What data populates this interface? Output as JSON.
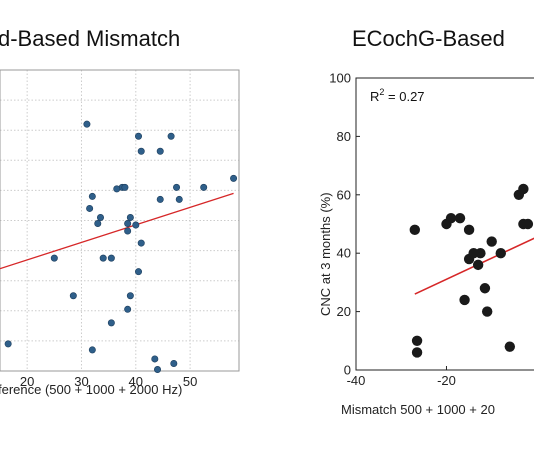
{
  "chart_data": [
    {
      "type": "scatter",
      "title": "d-Based Mismatch",
      "xlabel": "ference (500 + 1000 + 2000 Hz)",
      "ylabel": "",
      "xlim": [
        15,
        59
      ],
      "ylim": [
        0,
        100
      ],
      "xticks": [
        20,
        30,
        40,
        50
      ],
      "tick_labels_x": [
        "20",
        "30",
        "40",
        "50"
      ],
      "grid": true,
      "marker_color": "#2f5f8a",
      "fit_color": "#d62728",
      "fit": {
        "x": [
          15,
          58
        ],
        "y": [
          34,
          59
        ]
      },
      "x": [
        16.5,
        31,
        40.5,
        41,
        46.5,
        44.5,
        58,
        47.5,
        52.5,
        32,
        37.5,
        38,
        36.5,
        31.5,
        44.5,
        48,
        33.5,
        33,
        39,
        38.5,
        40,
        38.5,
        41,
        25,
        34,
        35.5,
        40.5,
        28.5,
        39,
        38.5,
        35.5,
        32,
        43.5,
        47,
        44
      ],
      "y": [
        9,
        82,
        78,
        73,
        78,
        73,
        64,
        61,
        61,
        58,
        61,
        61,
        60.5,
        54,
        57,
        57,
        51,
        49,
        51,
        49,
        48.5,
        46.5,
        42.5,
        37.5,
        37.5,
        37.5,
        33,
        25,
        25,
        20.5,
        16,
        7,
        4,
        2.5,
        0.5
      ]
    },
    {
      "type": "scatter",
      "title": "ECochG-Based",
      "xlabel": "Mismatch 500 + 1000 + 20",
      "ylabel": "CNC at 3 months (%)",
      "xlim": [
        -40,
        2
      ],
      "ylim": [
        0,
        100
      ],
      "xticks": [
        -40,
        -20
      ],
      "yticks": [
        0,
        20,
        40,
        60,
        80,
        100
      ],
      "tick_labels_x": [
        "-40",
        "-20"
      ],
      "tick_labels_y": [
        "0",
        "20",
        "40",
        "60",
        "80",
        "100"
      ],
      "annotation": "R",
      "annotation_sup": "2",
      "annotation_value": " = 0.27",
      "grid": false,
      "marker_color": "#1a1a1a",
      "fit_color": "#d62728",
      "fit": {
        "x": [
          -27,
          2
        ],
        "y": [
          26,
          47
        ]
      },
      "x": [
        -27,
        -26.5,
        -26.5,
        -20,
        -19,
        -17,
        -16,
        -15,
        -15,
        -14,
        -13,
        -12.5,
        -11.5,
        -11,
        -10,
        -8,
        -6,
        -4,
        -3,
        -3,
        -2
      ],
      "y": [
        48,
        10,
        6,
        50,
        52,
        52,
        24,
        48,
        38,
        40,
        36,
        40,
        28,
        20,
        44,
        40,
        8,
        60,
        50,
        62,
        50
      ]
    }
  ]
}
